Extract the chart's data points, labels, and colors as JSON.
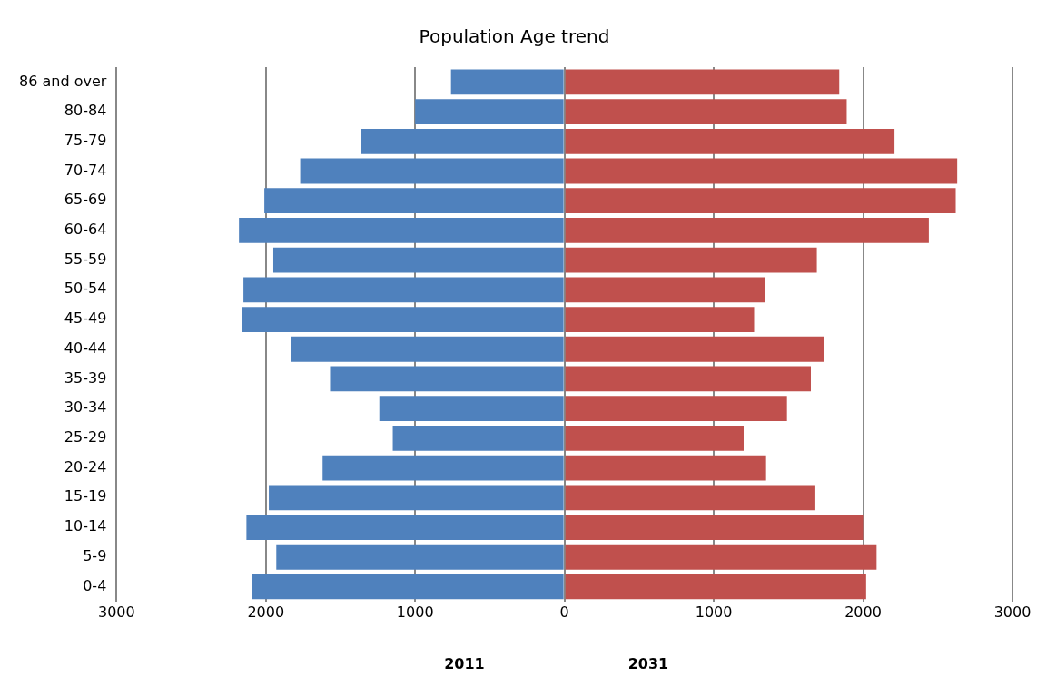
{
  "chart_data": {
    "type": "bar",
    "orientation": "horizontal",
    "stacked": true,
    "title": "Population Age trend",
    "categories": [
      "86 and over",
      "80-84",
      "75-79",
      "70-74",
      "65-69",
      "60-64",
      "55-59",
      "50-54",
      "45-49",
      "40-44",
      "35-39",
      "30-34",
      "25-29",
      "20-24",
      "15-19",
      "10-14",
      "5-9",
      "0-4"
    ],
    "series": [
      {
        "color": "#4f81bd",
        "values": [
          -760,
          -1000,
          -1360,
          -1770,
          -2010,
          -2180,
          -1950,
          -2150,
          -2160,
          -1830,
          -1570,
          -1240,
          -1150,
          -1620,
          -1980,
          -2130,
          -1930,
          -2090
        ]
      },
      {
        "color": "#c0504d",
        "values": [
          1840,
          1890,
          2210,
          2630,
          2620,
          2440,
          1690,
          1340,
          1270,
          1740,
          1650,
          1490,
          1200,
          1350,
          1680,
          2000,
          2090,
          2020
        ]
      }
    ],
    "xlim": [
      -3000,
      3000
    ],
    "xticks": [
      {
        "value": -3000,
        "label": "3000"
      },
      {
        "value": -2000,
        "label": "2000"
      },
      {
        "value": -1000,
        "label": "1000"
      },
      0,
      1000,
      2000,
      3000
    ],
    "annotations": [
      "2011",
      "2031"
    ],
    "grid": "x",
    "legend": false
  }
}
